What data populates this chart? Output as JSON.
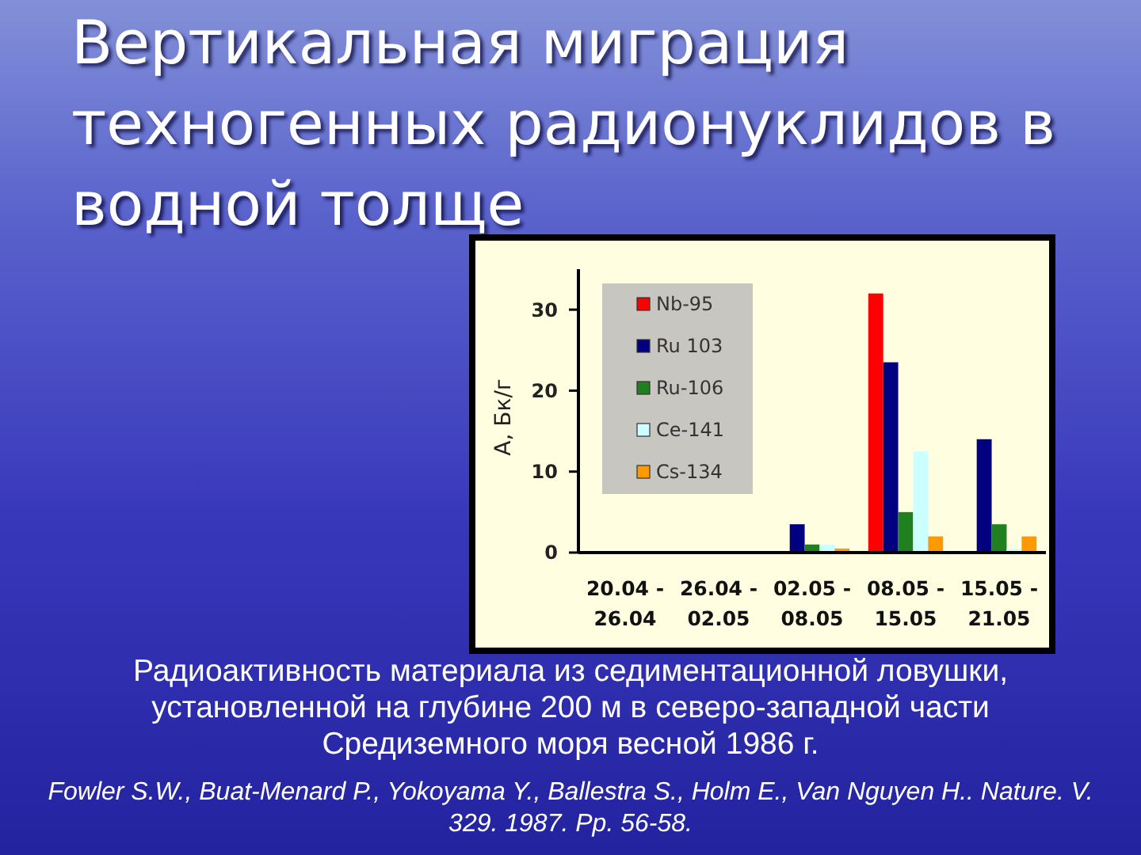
{
  "chart_data": {
    "type": "bar",
    "title": "Вертикальная миграция техногенных радионуклидов в водной толще",
    "ylabel": "А, Бк/г",
    "categories": [
      "20.04 - 26.04",
      "26.04 - 02.05",
      "02.05 - 08.05",
      "08.05 - 15.05",
      "15.05 - 21.05"
    ],
    "series": [
      {
        "name": "Nb-95",
        "color": "#ff0000",
        "values": [
          null,
          null,
          null,
          32,
          null
        ]
      },
      {
        "name": "Ru 103",
        "color": "#000080",
        "values": [
          null,
          null,
          3.5,
          23.5,
          14
        ]
      },
      {
        "name": "Ru-106",
        "color": "#208020",
        "values": [
          null,
          null,
          1,
          5,
          3.5
        ]
      },
      {
        "name": "Ce-141",
        "color": "#ccffff",
        "values": [
          null,
          null,
          1,
          12.5,
          0.5
        ]
      },
      {
        "name": "Cs-134",
        "color": "#ff9900",
        "values": [
          null,
          null,
          0.5,
          2,
          2
        ]
      }
    ],
    "ylim": [
      0,
      35
    ],
    "yticks": [
      0,
      10,
      20,
      30
    ],
    "grid": false,
    "legend": "top left",
    "annotations": [
      "Радиоактивность материала из седиментационной ловушки, установленной на глубине 200 м в северо-западной части Средиземного моря весной 1986 г.",
      "Fowler S.W., Buat-Menard P., Yokoyama Y., Ballestra S., Holm E., Van Nguyen H.. Nature. V. 329. 1987. Pp. 56-58."
    ]
  }
}
